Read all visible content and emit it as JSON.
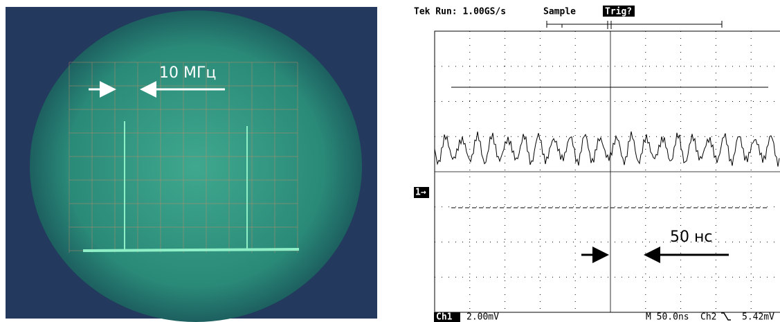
{
  "photo": {
    "annotation": "10 МГц"
  },
  "scope": {
    "status": "Tek Run: 1.00GS/s",
    "mode": "Sample",
    "trigger": "Trig?",
    "channel_marker": "1→",
    "annotation": "50 нс",
    "readouts": {
      "ch1": "Ch1",
      "ch1_scale": "2.00mV",
      "timebase": "M 50.0ns",
      "trigger_source": "Ch2",
      "trigger_level": "5.42mV"
    }
  }
}
